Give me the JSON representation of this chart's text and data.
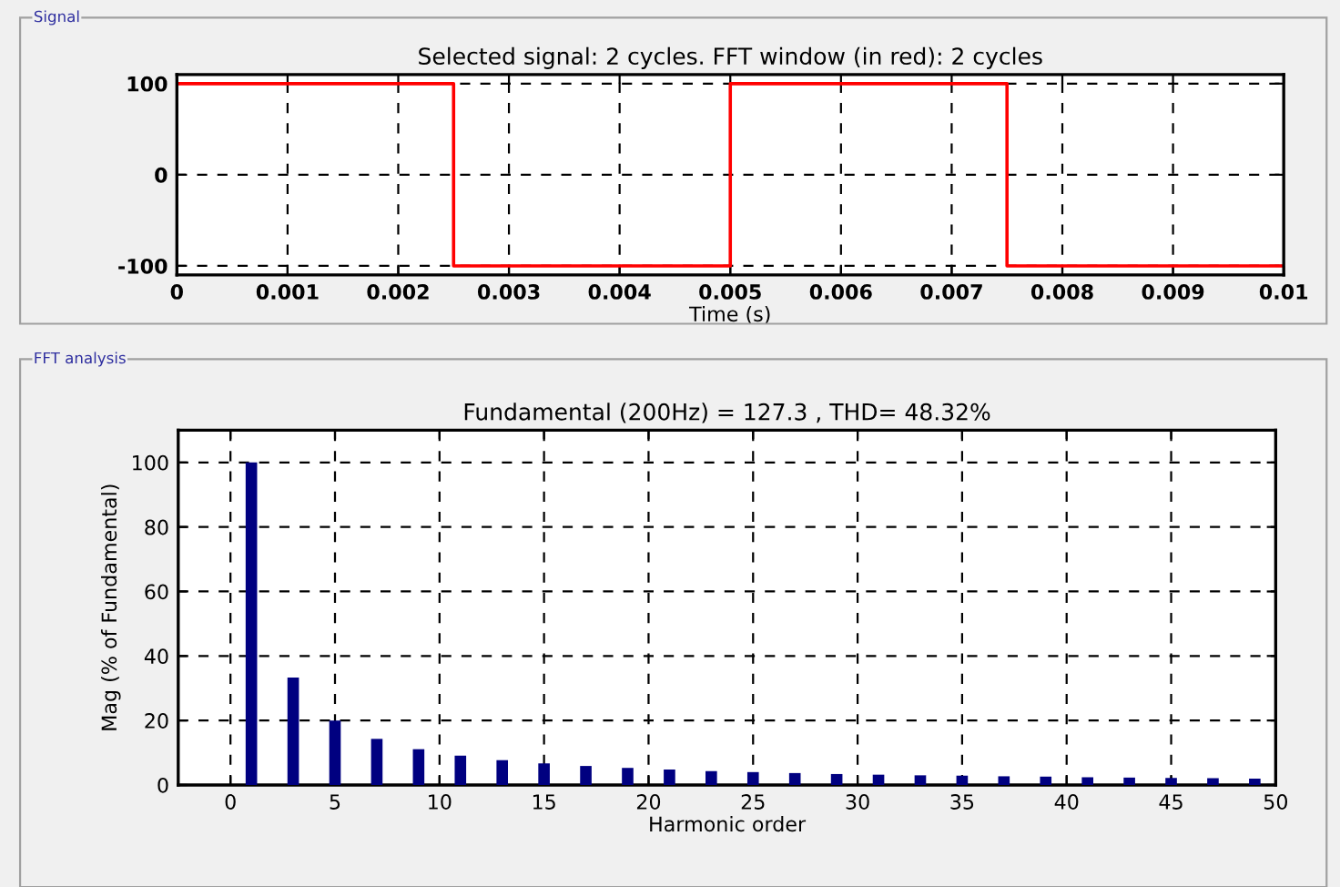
{
  "chart_data": [
    {
      "type": "line",
      "title": "Selected signal: 2 cycles. FFT window (in red): 2 cycles",
      "xlabel": "Time (s)",
      "annotations": [
        "Signal"
      ],
      "x": [
        0,
        0.0025,
        0.0025,
        0.005,
        0.005,
        0.0075,
        0.0075,
        0.01
      ],
      "series": [
        {
          "color": "#ff0000",
          "values": [
            100,
            100,
            -100,
            -100,
            100,
            100,
            -100,
            -100
          ]
        }
      ],
      "xlim": [
        0,
        0.01
      ],
      "xticks": [
        0,
        0.001,
        0.002,
        0.003,
        0.004,
        0.005,
        0.006,
        0.007,
        0.008,
        0.009,
        0.01
      ],
      "ylim": [
        -110,
        110
      ],
      "yticks": [
        -100,
        0,
        100
      ],
      "grid": true,
      "marker": "none",
      "line_style": "solid"
    },
    {
      "type": "bar",
      "title": "Fundamental (200Hz) = 127.3 , THD= 48.32%",
      "xlabel": "Harmonic order",
      "ylabel": "Mag (% of Fundamental)",
      "annotations": [
        "FFT analysis"
      ],
      "x": [
        1,
        3,
        5,
        7,
        9,
        11,
        13,
        15,
        17,
        19,
        21,
        23,
        25,
        27,
        29,
        31,
        33,
        35,
        37,
        39,
        41,
        43,
        45,
        47,
        49
      ],
      "series": [
        {
          "color": "#000080",
          "values": [
            100,
            33.3,
            20,
            14.3,
            11.1,
            9.1,
            7.7,
            6.7,
            5.9,
            5.3,
            4.8,
            4.3,
            4.0,
            3.7,
            3.4,
            3.2,
            3.0,
            2.9,
            2.7,
            2.6,
            2.4,
            2.3,
            2.2,
            2.1,
            2.0
          ]
        }
      ],
      "xlim": [
        -2.5,
        50
      ],
      "xticks": [
        0,
        5,
        10,
        15,
        20,
        25,
        30,
        35,
        40,
        45,
        50
      ],
      "ylim": [
        0,
        110
      ],
      "yticks": [
        0,
        20,
        40,
        60,
        80,
        100
      ],
      "grid": true
    }
  ]
}
